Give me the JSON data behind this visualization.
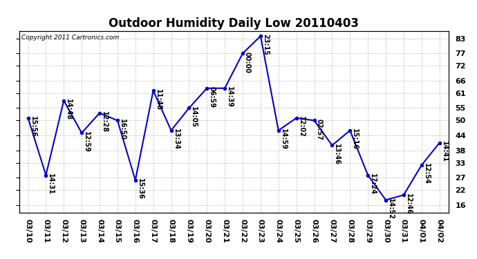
{
  "title": "Outdoor Humidity Daily Low 20110403",
  "copyright": "Copyright 2011 Cartronics.com",
  "line_color": "#0000cc",
  "bg_color": "#ffffff",
  "grid_color": "#bbbbbb",
  "x_labels": [
    "03/10",
    "03/11",
    "03/12",
    "03/13",
    "03/14",
    "03/15",
    "03/16",
    "03/17",
    "03/18",
    "03/19",
    "03/20",
    "03/21",
    "03/22",
    "03/23",
    "03/24",
    "03/25",
    "03/26",
    "03/27",
    "03/28",
    "03/29",
    "03/30",
    "03/31",
    "04/01",
    "04/02"
  ],
  "y_values": [
    51,
    28,
    58,
    45,
    53,
    50,
    26,
    62,
    46,
    55,
    63,
    63,
    77,
    84,
    46,
    51,
    50,
    40,
    46,
    28,
    18,
    20,
    32,
    41
  ],
  "time_labels": [
    "15:56",
    "14:31",
    "14:48",
    "12:59",
    "12:28",
    "16:50",
    "15:36",
    "11:48",
    "13:34",
    "14:05",
    "06:59",
    "14:39",
    "00:00",
    "23:15",
    "14:59",
    "12:02",
    "02:57",
    "13:46",
    "15:16",
    "17:24",
    "14:52",
    "12:46",
    "12:54",
    "14:41"
  ],
  "yticks": [
    16,
    22,
    27,
    33,
    38,
    44,
    50,
    55,
    61,
    66,
    72,
    77,
    83
  ],
  "ylim": [
    13,
    86
  ],
  "title_fontsize": 12,
  "label_fontsize": 7,
  "tick_fontsize": 8,
  "copyright_fontsize": 6.5
}
